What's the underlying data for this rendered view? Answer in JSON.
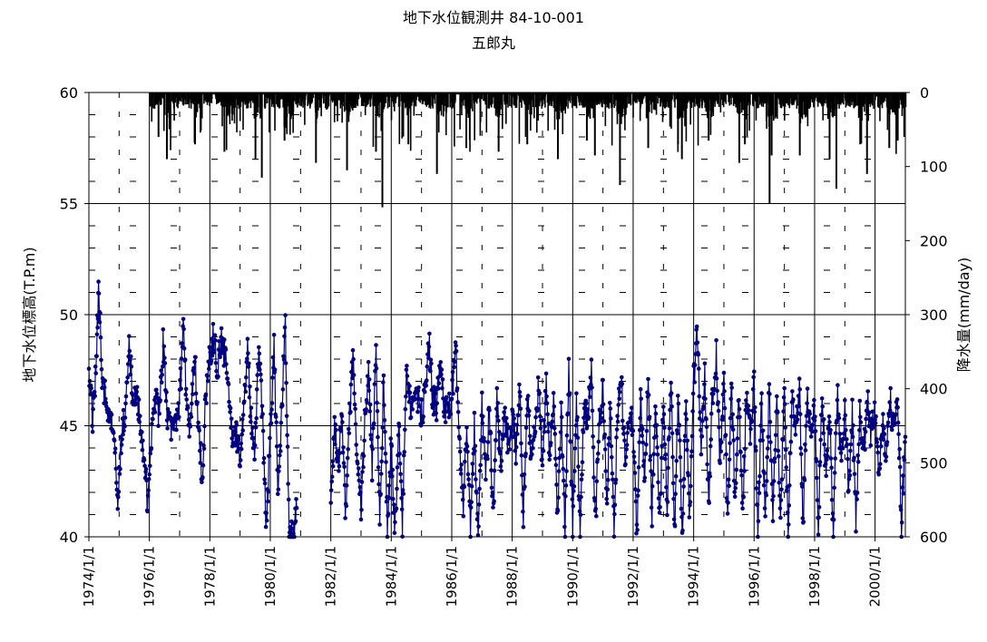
{
  "title": {
    "line1": "地下水位観測井 84-10-001",
    "line2": "五郎丸"
  },
  "chart_data": {
    "type": "line",
    "title": "地下水位観測井 84-10-001 五郎丸",
    "xlabel": "",
    "ylabel": "地下水位標高(T.P.m)",
    "y2label": "降水量(mm/day)",
    "xlim": [
      "1974-01-01",
      "2001-01-01"
    ],
    "ylim": [
      40,
      60
    ],
    "y2lim": [
      0,
      600
    ],
    "y2_reversed": true,
    "grid": true,
    "x_tick_labels": [
      "1974/1/1",
      "1976/1/1",
      "1978/1/1",
      "1980/1/1",
      "1982/1/1",
      "1984/1/1",
      "1986/1/1",
      "1988/1/1",
      "1990/1/1",
      "1992/1/1",
      "1994/1/1",
      "1996/1/1",
      "1998/1/1",
      "2000/1/1"
    ],
    "y_tick_labels": [
      "40",
      "45",
      "50",
      "55",
      "60"
    ],
    "y2_tick_labels": [
      "0",
      "100",
      "200",
      "300",
      "400",
      "500",
      "600"
    ],
    "colors": {
      "groundwater": "#000080",
      "precipitation": "#000000"
    },
    "series": [
      {
        "kind": "groundwater_level",
        "axis": "left",
        "points": [
          [
            "1974-01-01",
            47.5
          ],
          [
            "1974-02-15",
            45.3
          ],
          [
            "1974-04-01",
            48.0
          ],
          [
            "1974-05-01",
            51.4
          ],
          [
            "1974-06-15",
            46.8
          ],
          [
            "1974-08-01",
            46.2
          ],
          [
            "1974-09-15",
            45.1
          ],
          [
            "1974-11-01",
            45.0
          ],
          [
            "1974-12-15",
            41.5
          ],
          [
            "1975-02-01",
            44.8
          ],
          [
            "1975-03-15",
            45.5
          ],
          [
            "1975-05-01",
            49.1
          ],
          [
            "1975-06-15",
            45.8
          ],
          [
            "1975-08-01",
            46.5
          ],
          [
            "1975-09-15",
            45.2
          ],
          [
            "1975-11-01",
            43.5
          ],
          [
            "1975-12-15",
            41.2
          ],
          [
            "1976-02-01",
            45.0
          ],
          [
            "1976-03-15",
            46.5
          ],
          [
            "1976-05-01",
            45.3
          ],
          [
            "1976-06-15",
            48.7
          ],
          [
            "1976-08-01",
            45.6
          ],
          [
            "1976-09-15",
            44.8
          ],
          [
            "1976-11-01",
            45.2
          ],
          [
            "1977-01-01",
            46.0
          ],
          [
            "1977-02-15",
            49.6
          ],
          [
            "1977-04-01",
            45.5
          ],
          [
            "1977-05-15",
            44.9
          ],
          [
            "1977-07-01",
            48.4
          ],
          [
            "1977-08-15",
            45.0
          ],
          [
            "1977-10-01",
            42.7
          ],
          [
            "1977-11-15",
            46.5
          ],
          [
            "1978-01-01",
            48.2
          ],
          [
            "1978-02-15",
            49.0
          ],
          [
            "1978-04-01",
            47.5
          ],
          [
            "1978-05-15",
            48.9
          ],
          [
            "1978-07-01",
            48.1
          ],
          [
            "1978-08-15",
            46.8
          ],
          [
            "1978-10-01",
            44.0
          ],
          [
            "1978-11-15",
            44.5
          ],
          [
            "1979-01-01",
            43.8
          ],
          [
            "1979-02-15",
            45.5
          ],
          [
            "1979-04-01",
            48.7
          ],
          [
            "1979-05-15",
            45.2
          ],
          [
            "1979-07-01",
            44.0
          ],
          [
            "1979-08-15",
            48.9
          ],
          [
            "1979-10-01",
            45.1
          ],
          [
            "1979-11-15",
            40.5
          ],
          [
            "1980-01-01",
            44.9
          ],
          [
            "1980-02-15",
            48.5
          ],
          [
            "1980-04-01",
            42.1
          ],
          [
            "1980-05-15",
            45.2
          ],
          [
            "1980-07-01",
            49.7
          ],
          [
            "1980-08-15",
            40.0
          ],
          [
            "1980-10-01",
            40.0
          ],
          [
            "1980-11-15",
            41.3
          ],
          [
            "1982-01-01",
            41.0
          ],
          [
            "1982-02-15",
            45.0
          ],
          [
            "1982-04-01",
            43.2
          ],
          [
            "1982-05-15",
            45.6
          ],
          [
            "1982-07-01",
            40.8
          ],
          [
            "1982-08-15",
            45.5
          ],
          [
            "1982-10-01",
            48.3
          ],
          [
            "1982-11-15",
            43.5
          ],
          [
            "1983-01-01",
            41.2
          ],
          [
            "1983-02-15",
            45.2
          ],
          [
            "1983-04-01",
            47.6
          ],
          [
            "1983-05-15",
            43.0
          ],
          [
            "1983-07-01",
            48.3
          ],
          [
            "1983-08-15",
            40.4
          ],
          [
            "1983-10-01",
            47.1
          ],
          [
            "1983-11-15",
            40.5
          ],
          [
            "1984-01-01",
            44.2
          ],
          [
            "1984-02-15",
            40.1
          ],
          [
            "1984-04-01",
            44.9
          ],
          [
            "1984-05-15",
            40.6
          ],
          [
            "1984-07-01",
            47.4
          ],
          [
            "1984-08-15",
            46.0
          ],
          [
            "1984-10-01",
            45.8
          ],
          [
            "1984-11-15",
            46.2
          ],
          [
            "1985-01-01",
            45.5
          ],
          [
            "1985-02-15",
            46.4
          ],
          [
            "1985-04-01",
            48.9
          ],
          [
            "1985-05-15",
            46.2
          ],
          [
            "1985-07-01",
            45.8
          ],
          [
            "1985-08-15",
            47.8
          ],
          [
            "1985-10-01",
            46.0
          ],
          [
            "1985-11-15",
            45.5
          ],
          [
            "1986-01-01",
            46.2
          ],
          [
            "1986-02-15",
            48.5
          ],
          [
            "1986-04-01",
            45.2
          ],
          [
            "1986-05-15",
            41.2
          ],
          [
            "1986-07-01",
            44.5
          ],
          [
            "1986-08-15",
            40.2
          ],
          [
            "1986-10-01",
            45.0
          ],
          [
            "1986-11-15",
            40.0
          ],
          [
            "1987-01-01",
            46.2
          ],
          [
            "1987-02-15",
            42.5
          ],
          [
            "1987-04-01",
            45.9
          ],
          [
            "1987-05-15",
            40.8
          ],
          [
            "1987-07-01",
            46.1
          ],
          [
            "1987-08-15",
            43.0
          ],
          [
            "1987-10-01",
            45.5
          ],
          [
            "1987-11-15",
            44.0
          ],
          [
            "1988-01-01",
            45.5
          ],
          [
            "1988-02-15",
            43.8
          ],
          [
            "1988-04-01",
            47.0
          ],
          [
            "1988-05-15",
            40.8
          ],
          [
            "1988-07-01",
            46.5
          ],
          [
            "1988-08-15",
            43.5
          ],
          [
            "1988-10-01",
            44.8
          ],
          [
            "1988-11-15",
            46.8
          ],
          [
            "1989-01-01",
            43.2
          ],
          [
            "1989-02-15",
            46.8
          ],
          [
            "1989-04-01",
            43.5
          ],
          [
            "1989-05-15",
            45.8
          ],
          [
            "1989-07-01",
            41.0
          ],
          [
            "1989-08-15",
            45.5
          ],
          [
            "1989-10-01",
            40.2
          ],
          [
            "1989-11-15",
            48.0
          ],
          [
            "1990-01-01",
            40.0
          ],
          [
            "1990-02-15",
            46.2
          ],
          [
            "1990-04-01",
            40.3
          ],
          [
            "1990-05-15",
            45.9
          ],
          [
            "1990-07-01",
            45.2
          ],
          [
            "1990-08-15",
            47.6
          ],
          [
            "1990-10-01",
            40.5
          ],
          [
            "1990-11-15",
            45.0
          ],
          [
            "1991-01-01",
            47.0
          ],
          [
            "1991-02-15",
            41.2
          ],
          [
            "1991-04-01",
            46.0
          ],
          [
            "1991-05-15",
            40.5
          ],
          [
            "1991-07-01",
            45.8
          ],
          [
            "1991-08-15",
            46.8
          ],
          [
            "1991-10-01",
            43.2
          ],
          [
            "1991-11-15",
            45.6
          ],
          [
            "1992-01-01",
            45.1
          ],
          [
            "1992-02-15",
            40.2
          ],
          [
            "1992-04-01",
            46.0
          ],
          [
            "1992-05-15",
            42.5
          ],
          [
            "1992-07-01",
            47.2
          ],
          [
            "1992-08-15",
            41.0
          ],
          [
            "1992-10-01",
            45.8
          ],
          [
            "1992-11-15",
            40.4
          ],
          [
            "1993-01-01",
            46.2
          ],
          [
            "1993-02-15",
            41.5
          ],
          [
            "1993-04-01",
            47.6
          ],
          [
            "1993-05-15",
            40.1
          ],
          [
            "1993-07-01",
            46.5
          ],
          [
            "1993-08-15",
            40.0
          ],
          [
            "1993-10-01",
            45.8
          ],
          [
            "1993-11-15",
            40.9
          ],
          [
            "1994-01-01",
            47.0
          ],
          [
            "1994-02-15",
            49.2
          ],
          [
            "1994-04-01",
            43.8
          ],
          [
            "1994-05-15",
            47.5
          ],
          [
            "1994-07-01",
            41.5
          ],
          [
            "1994-08-15",
            46.5
          ],
          [
            "1994-10-01",
            48.2
          ],
          [
            "1994-11-15",
            43.5
          ],
          [
            "1995-01-01",
            47.2
          ],
          [
            "1995-02-15",
            40.6
          ],
          [
            "1995-04-01",
            46.9
          ],
          [
            "1995-05-15",
            41.8
          ],
          [
            "1995-07-01",
            46.1
          ],
          [
            "1995-08-15",
            40.8
          ],
          [
            "1995-10-01",
            46.5
          ],
          [
            "1995-11-15",
            44.5
          ],
          [
            "1996-01-01",
            46.8
          ],
          [
            "1996-02-15",
            40.4
          ],
          [
            "1996-04-01",
            46.0
          ],
          [
            "1996-05-15",
            41.2
          ],
          [
            "1996-07-01",
            46.5
          ],
          [
            "1996-08-15",
            40.8
          ],
          [
            "1996-10-01",
            46.6
          ],
          [
            "1996-11-15",
            41.0
          ],
          [
            "1997-01-01",
            46.8
          ],
          [
            "1997-02-15",
            40.2
          ],
          [
            "1997-04-01",
            46.2
          ],
          [
            "1997-05-15",
            45.0
          ],
          [
            "1997-07-01",
            46.8
          ],
          [
            "1997-08-15",
            40.5
          ],
          [
            "1997-10-01",
            46.5
          ],
          [
            "1997-11-15",
            44.5
          ],
          [
            "1998-01-01",
            45.8
          ],
          [
            "1998-02-15",
            40.5
          ],
          [
            "1998-04-01",
            46.5
          ],
          [
            "1998-05-15",
            43.0
          ],
          [
            "1998-07-01",
            45.5
          ],
          [
            "1998-08-15",
            40.0
          ],
          [
            "1998-10-01",
            46.6
          ],
          [
            "1998-11-15",
            43.2
          ],
          [
            "1999-01-01",
            45.9
          ],
          [
            "1999-02-15",
            42.0
          ],
          [
            "1999-04-01",
            45.8
          ],
          [
            "1999-05-15",
            40.6
          ],
          [
            "1999-07-01",
            46.0
          ],
          [
            "1999-08-15",
            43.5
          ],
          [
            "1999-10-01",
            46.2
          ],
          [
            "1999-11-15",
            44.6
          ],
          [
            "2000-01-01",
            45.7
          ],
          [
            "2000-02-15",
            42.3
          ],
          [
            "2000-04-01",
            45.5
          ],
          [
            "2000-05-15",
            43.2
          ],
          [
            "2000-07-01",
            46.2
          ],
          [
            "2000-08-15",
            44.6
          ],
          [
            "2000-10-01",
            46.3
          ],
          [
            "2000-11-15",
            40.6
          ],
          [
            "2001-01-01",
            44.5
          ]
        ]
      },
      {
        "kind": "precipitation",
        "axis": "right",
        "start": "1976-01-01",
        "end": "2001-01-01",
        "peaks": [
          [
            "1976-04-10",
            60
          ],
          [
            "1976-07-20",
            90
          ],
          [
            "1977-06-25",
            70
          ],
          [
            "1978-06-15",
            80
          ],
          [
            "1979-06-25",
            90
          ],
          [
            "1979-09-10",
            115
          ],
          [
            "1980-06-10",
            65
          ],
          [
            "1981-06-25",
            95
          ],
          [
            "1982-07-05",
            105
          ],
          [
            "1983-06-20",
            80
          ],
          [
            "1983-09-05",
            155
          ],
          [
            "1984-07-15",
            70
          ],
          [
            "1985-06-25",
            110
          ],
          [
            "1986-06-15",
            75
          ],
          [
            "1987-07-10",
            80
          ],
          [
            "1988-06-20",
            70
          ],
          [
            "1989-06-25",
            90
          ],
          [
            "1990-06-10",
            65
          ],
          [
            "1990-09-15",
            85
          ],
          [
            "1991-07-15",
            125
          ],
          [
            "1992-06-20",
            75
          ],
          [
            "1993-06-15",
            70
          ],
          [
            "1993-08-01",
            90
          ],
          [
            "1994-06-20",
            65
          ],
          [
            "1995-06-25",
            95
          ],
          [
            "1995-09-01",
            70
          ],
          [
            "1996-06-25",
            150
          ],
          [
            "1996-07-20",
            85
          ],
          [
            "1997-06-25",
            85
          ],
          [
            "1998-06-20",
            90
          ],
          [
            "1998-09-10",
            130
          ],
          [
            "1999-06-25",
            70
          ],
          [
            "1999-09-15",
            110
          ],
          [
            "2000-06-10",
            75
          ],
          [
            "2000-09-20",
            65
          ]
        ]
      }
    ]
  }
}
